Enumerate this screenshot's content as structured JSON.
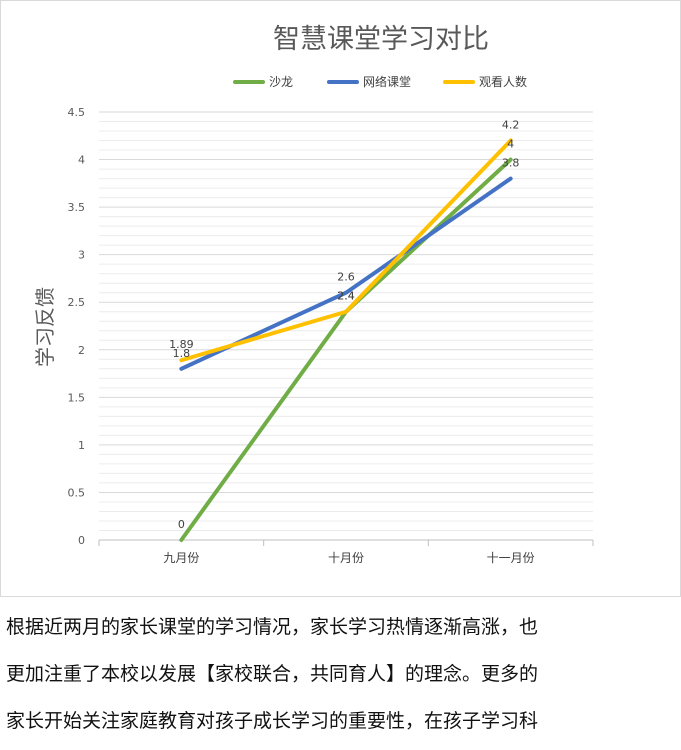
{
  "chart_data": {
    "type": "line",
    "title": "智慧课堂学习对比",
    "ylabel": "学习反馈",
    "xlabel": "",
    "categories": [
      "九月份",
      "十月份",
      "十一月份"
    ],
    "ylim": [
      0,
      4.5
    ],
    "yticks": [
      "0",
      "0.5",
      "1",
      "1.5",
      "2",
      "2.5",
      "3",
      "3.5",
      "4",
      "4.5"
    ],
    "grid": true,
    "legend_position": "top",
    "series": [
      {
        "name": "沙龙",
        "values": [
          0,
          2.4,
          4
        ],
        "labels": [
          "0",
          "2.4",
          "4"
        ],
        "color": "#70ad47"
      },
      {
        "name": "网络课堂",
        "values": [
          1.8,
          2.6,
          3.8
        ],
        "labels": [
          "1.8",
          "2.6",
          "3.8"
        ],
        "color": "#4472c4"
      },
      {
        "name": "观看人数",
        "values": [
          1.89,
          2.4,
          4.2
        ],
        "labels": [
          "1.89",
          "2.4",
          "4.2"
        ],
        "color": "#ffc000"
      }
    ]
  },
  "text": {
    "lines": [
      "根据近两月的家长课堂的学习情况，家长学习热情逐渐高涨，也",
      "更加注重了本校以发展【家校联合，共同育人】的理念。更多的",
      "家长开始关注家庭教育对孩子成长学习的重要性，在孩子学习科"
    ]
  }
}
